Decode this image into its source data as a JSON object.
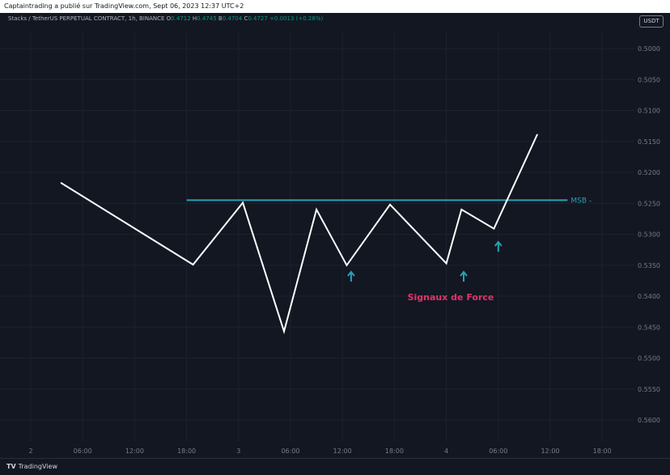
{
  "header": {
    "published_by": "Captaintrading a publié sur TradingView.com, Sept 06, 2023 12:37 UTC+2"
  },
  "symbol": {
    "name": "Stacks / TetherUS PERPETUAL CONTRACT, 1h, BINANCE",
    "open_label": "O",
    "open": "0.4712",
    "high_label": "H",
    "high": "0.4745",
    "low_label": "B",
    "low": "0.4704",
    "close_label": "C",
    "close": "0.4727",
    "change": "+0.0013 (+0.28%)"
  },
  "currency_badge": "USDT",
  "footer": {
    "brand": "TradingView",
    "logo_icon": "tradingview-logo-icon"
  },
  "colors": {
    "background": "#131722",
    "line": "#ffffff",
    "msb_line": "#26a2b5",
    "arrows": "#26a2b5",
    "annotation": "#e0336b",
    "axis_text": "#787b86",
    "grid": "#1e222d"
  },
  "chart_data": {
    "type": "line",
    "y_scale": "inverted",
    "ylim": [
      0.5,
      0.5625
    ],
    "y_ticks": [
      "0.5000",
      "0.5050",
      "0.5100",
      "0.5150",
      "0.5200",
      "0.5250",
      "0.5300",
      "0.5350",
      "0.5400",
      "0.5450",
      "0.5500",
      "0.5550",
      "0.5600"
    ],
    "x_ticks": [
      "2",
      "06:00",
      "12:00",
      "18:00",
      "3",
      "06:00",
      "12:00",
      "18:00",
      "4",
      "06:00",
      "12:00",
      "18:00"
    ],
    "grid": true,
    "series": [
      {
        "x": [
          "2 03:30",
          "2 18:45",
          "3 00:30",
          "3 05:15",
          "3 09:00",
          "3 12:30",
          "3 17:30",
          "4 00:00",
          "4 01:45",
          "4 05:30",
          "4 10:30"
        ],
        "values": [
          0.5217,
          0.5349,
          0.5249,
          0.5457,
          0.526,
          0.535,
          0.5252,
          0.5347,
          0.526,
          0.5291,
          0.5139
        ]
      }
    ],
    "msb_level": 0.5245,
    "msb_label": "MSB",
    "msb_x_range": [
      "2 18:00",
      "4 14:00"
    ],
    "arrow_markers_x": [
      "3 13:00",
      "4 02:00",
      "4 06:00"
    ],
    "annotation": "Signaux de Force"
  }
}
